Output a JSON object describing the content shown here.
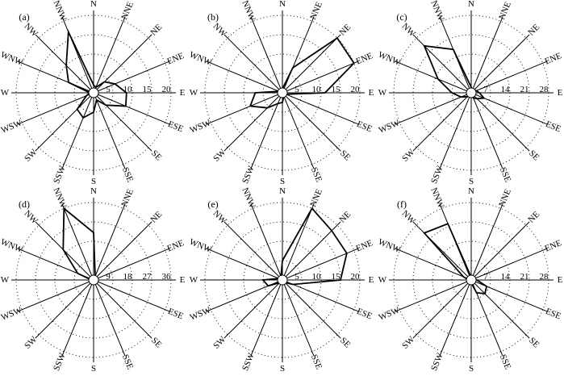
{
  "chart_data": [
    {
      "type": "radar",
      "panel_label": "(a)",
      "directions": [
        "N",
        "NNE",
        "NE",
        "ENE",
        "E",
        "ESE",
        "SE",
        "SSE",
        "S",
        "SSW",
        "SW",
        "WSW",
        "W",
        "WNW",
        "NW",
        "NNW"
      ],
      "rmax": 20,
      "ticks": [
        "5",
        "10",
        "15",
        "20"
      ],
      "values": [
        2,
        1.5,
        4,
        6,
        8.5,
        9,
        4.5,
        2,
        5,
        7,
        6,
        2,
        1,
        7,
        10,
        17
      ]
    },
    {
      "type": "radar",
      "panel_label": "(b)",
      "directions": [
        "N",
        "NNE",
        "NE",
        "ENE",
        "E",
        "ESE",
        "SE",
        "SSE",
        "S",
        "SSW",
        "SW",
        "WSW",
        "W",
        "WNW",
        "NW",
        "NNW"
      ],
      "rmax": 20,
      "ticks": [
        "5",
        "10",
        "15",
        "20"
      ],
      "values": [
        1,
        7,
        22,
        21,
        11,
        1,
        0.5,
        1,
        2.5,
        3,
        5.5,
        9,
        7,
        1,
        0.5,
        0.5
      ]
    },
    {
      "type": "radar",
      "panel_label": "(c)",
      "directions": [
        "N",
        "NNE",
        "NE",
        "ENE",
        "E",
        "ESE",
        "SE",
        "SSE",
        "S",
        "SSW",
        "SW",
        "WSW",
        "W",
        "WNW",
        "NW",
        "NNW"
      ],
      "rmax": 28,
      "ticks": [
        "7",
        "14",
        "21",
        "28"
      ],
      "values": [
        2,
        1,
        1,
        2,
        3,
        5,
        3,
        2,
        1,
        1,
        2,
        4,
        7,
        13,
        24,
        17
      ]
    },
    {
      "type": "radar",
      "panel_label": "(d)",
      "directions": [
        "N",
        "NNE",
        "NE",
        "ENE",
        "E",
        "ESE",
        "SE",
        "SSE",
        "S",
        "SSW",
        "SW",
        "WSW",
        "W",
        "WNW",
        "NW",
        "NNW"
      ],
      "rmax": 36,
      "ticks": [
        "9",
        "18",
        "27",
        "36"
      ],
      "values": [
        22,
        2,
        1,
        1,
        2,
        1,
        1,
        1,
        1,
        1,
        1,
        1,
        1,
        8,
        20,
        36
      ]
    },
    {
      "type": "radar",
      "panel_label": "(e)",
      "directions": [
        "N",
        "NNE",
        "NE",
        "ENE",
        "E",
        "ESE",
        "SE",
        "SSE",
        "S",
        "SSW",
        "SW",
        "WSW",
        "W",
        "WNW",
        "NW",
        "NNW"
      ],
      "rmax": 20,
      "ticks": [
        "5",
        "10",
        "15",
        "20"
      ],
      "values": [
        5,
        20,
        18,
        18,
        15,
        3,
        1,
        1,
        1,
        1,
        1,
        4,
        5,
        1,
        1,
        1
      ]
    },
    {
      "type": "radar",
      "panel_label": "(f)",
      "directions": [
        "N",
        "NNE",
        "NE",
        "ENE",
        "E",
        "ESE",
        "SE",
        "SSE",
        "S",
        "SSW",
        "SW",
        "WSW",
        "W",
        "WNW",
        "NW",
        "NNW"
      ],
      "rmax": 28,
      "ticks": [
        "7",
        "14",
        "21",
        "28"
      ],
      "values": [
        1,
        1,
        1,
        1,
        2,
        6,
        7,
        5,
        1,
        1,
        1,
        1,
        1,
        3,
        24,
        22
      ]
    }
  ]
}
